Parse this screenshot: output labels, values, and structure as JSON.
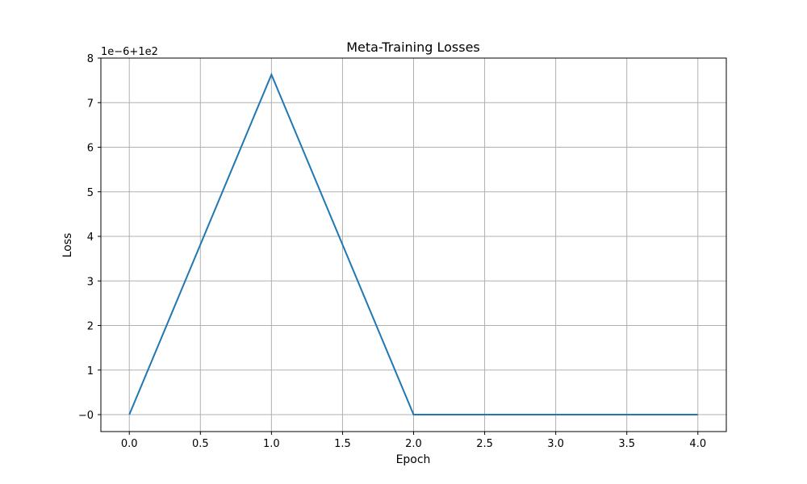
{
  "chart_data": {
    "type": "line",
    "title": "Meta-Training Losses",
    "xlabel": "Epoch",
    "ylabel": "Loss",
    "offset_text": "1e−6+1e2",
    "x": [
      0,
      1,
      2,
      3,
      4
    ],
    "series": [
      {
        "name": "Loss",
        "values": [
          0.0,
          7.63,
          0.0,
          0.0,
          0.0
        ],
        "color": "#1f77b4"
      }
    ],
    "xlim": [
      -0.2,
      4.2
    ],
    "ylim": [
      -0.38,
      8.0
    ],
    "xticks": [
      0.0,
      0.5,
      1.0,
      1.5,
      2.0,
      2.5,
      3.0,
      3.5,
      4.0
    ],
    "xtick_labels": [
      "0.0",
      "0.5",
      "1.0",
      "1.5",
      "2.0",
      "2.5",
      "3.0",
      "3.5",
      "4.0"
    ],
    "yticks": [
      0,
      1,
      2,
      3,
      4,
      5,
      6,
      7,
      8
    ],
    "ytick_labels": [
      "−0",
      "1",
      "2",
      "3",
      "4",
      "5",
      "6",
      "7",
      "8"
    ],
    "grid": true
  }
}
